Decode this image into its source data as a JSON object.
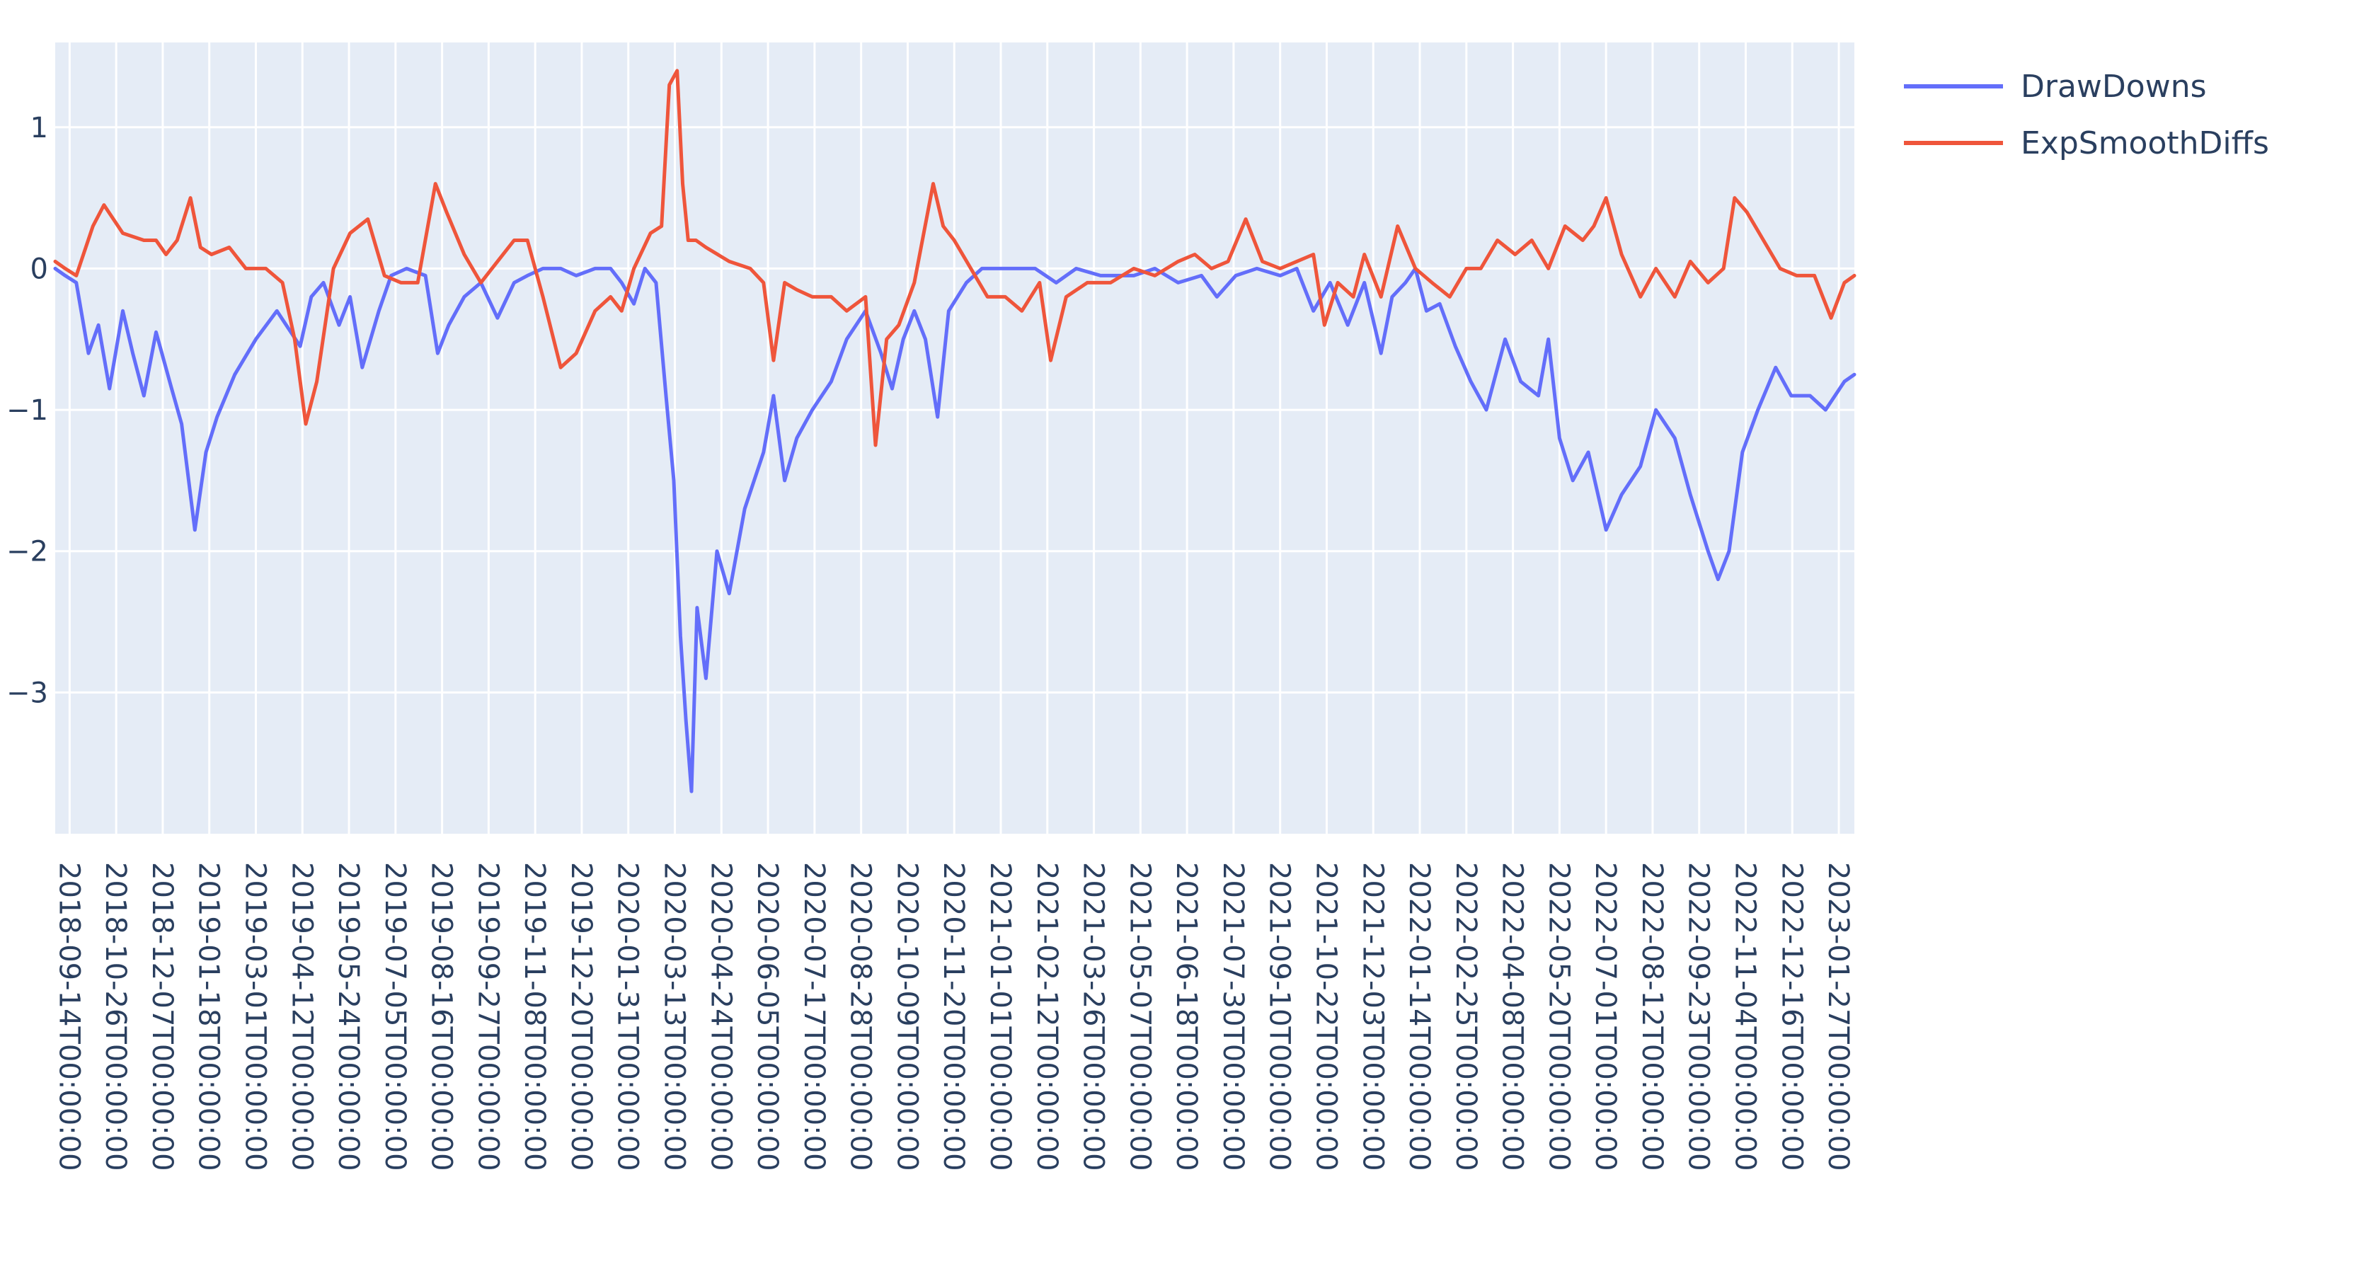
{
  "chart_data": {
    "type": "line",
    "title": "",
    "xlabel": "",
    "ylabel": "",
    "ylim": [
      -4,
      1.6
    ],
    "yticks": [
      1,
      0,
      -1,
      -2,
      -3
    ],
    "ytick_labels": [
      "1",
      "0",
      "−1",
      "−2",
      "−3"
    ],
    "x_range": [
      "2018-09-01",
      "2023-02-10"
    ],
    "xticks": [
      "2018-09-14",
      "2018-10-26",
      "2018-12-07",
      "2019-01-18",
      "2019-03-01",
      "2019-04-12",
      "2019-05-24",
      "2019-07-05",
      "2019-08-16",
      "2019-09-27",
      "2019-11-08",
      "2019-12-20",
      "2020-01-31",
      "2020-03-13",
      "2020-04-24",
      "2020-06-05",
      "2020-07-17",
      "2020-08-28",
      "2020-10-09",
      "2020-11-20",
      "2021-01-01",
      "2021-02-12",
      "2021-03-26",
      "2021-05-07",
      "2021-06-18",
      "2021-07-30",
      "2021-09-10",
      "2021-10-22",
      "2021-12-03",
      "2022-01-14",
      "2022-02-25",
      "2022-04-08",
      "2022-05-20",
      "2022-07-01",
      "2022-08-12",
      "2022-09-23",
      "2022-11-04",
      "2022-12-16",
      "2023-01-27"
    ],
    "xtick_labels": [
      "2018-09-14T00:00:00",
      "2018-10-26T00:00:00",
      "2018-12-07T00:00:00",
      "2019-01-18T00:00:00",
      "2019-03-01T00:00:00",
      "2019-04-12T00:00:00",
      "2019-05-24T00:00:00",
      "2019-07-05T00:00:00",
      "2019-08-16T00:00:00",
      "2019-09-27T00:00:00",
      "2019-11-08T00:00:00",
      "2019-12-20T00:00:00",
      "2020-01-31T00:00:00",
      "2020-03-13T00:00:00",
      "2020-04-24T00:00:00",
      "2020-06-05T00:00:00",
      "2020-07-17T00:00:00",
      "2020-08-28T00:00:00",
      "2020-10-09T00:00:00",
      "2020-11-20T00:00:00",
      "2021-01-01T00:00:00",
      "2021-02-12T00:00:00",
      "2021-03-26T00:00:00",
      "2021-05-07T00:00:00",
      "2021-06-18T00:00:00",
      "2021-07-30T00:00:00",
      "2021-09-10T00:00:00",
      "2021-10-22T00:00:00",
      "2021-12-03T00:00:00",
      "2022-01-14T00:00:00",
      "2022-02-25T00:00:00",
      "2022-04-08T00:00:00",
      "2022-05-20T00:00:00",
      "2022-07-01T00:00:00",
      "2022-08-12T00:00:00",
      "2022-09-23T00:00:00",
      "2022-11-04T00:00:00",
      "2022-12-16T00:00:00",
      "2023-01-27T00:00:00"
    ],
    "grid": true,
    "legend_position": "top-right",
    "plot_bg": "#e5ecf6",
    "series": [
      {
        "name": "DrawDowns",
        "color": "#636efa",
        "x": [
          "2018-09-01",
          "2018-09-10",
          "2018-09-20",
          "2018-10-01",
          "2018-10-10",
          "2018-10-20",
          "2018-11-01",
          "2018-11-10",
          "2018-11-20",
          "2018-12-01",
          "2018-12-15",
          "2018-12-24",
          "2019-01-05",
          "2019-01-15",
          "2019-01-25",
          "2019-02-10",
          "2019-03-01",
          "2019-03-20",
          "2019-04-10",
          "2019-04-20",
          "2019-05-01",
          "2019-05-15",
          "2019-05-25",
          "2019-06-05",
          "2019-06-20",
          "2019-07-01",
          "2019-07-15",
          "2019-08-01",
          "2019-08-12",
          "2019-08-22",
          "2019-09-05",
          "2019-09-20",
          "2019-10-05",
          "2019-10-20",
          "2019-11-01",
          "2019-11-15",
          "2019-12-01",
          "2019-12-15",
          "2020-01-01",
          "2020-01-15",
          "2020-01-25",
          "2020-02-05",
          "2020-02-15",
          "2020-02-25",
          "2020-03-05",
          "2020-03-12",
          "2020-03-18",
          "2020-03-23",
          "2020-03-28",
          "2020-04-02",
          "2020-04-10",
          "2020-04-20",
          "2020-05-01",
          "2020-05-15",
          "2020-06-01",
          "2020-06-10",
          "2020-06-20",
          "2020-07-01",
          "2020-07-15",
          "2020-08-01",
          "2020-08-15",
          "2020-09-01",
          "2020-09-15",
          "2020-09-25",
          "2020-10-05",
          "2020-10-15",
          "2020-10-25",
          "2020-11-05",
          "2020-11-15",
          "2020-12-01",
          "2020-12-15",
          "2021-01-01",
          "2021-02-01",
          "2021-02-20",
          "2021-03-10",
          "2021-04-01",
          "2021-05-01",
          "2021-05-20",
          "2021-06-10",
          "2021-07-01",
          "2021-07-15",
          "2021-08-01",
          "2021-08-20",
          "2021-09-10",
          "2021-09-25",
          "2021-10-10",
          "2021-10-25",
          "2021-11-10",
          "2021-11-25",
          "2021-12-10",
          "2021-12-20",
          "2022-01-01",
          "2022-01-10",
          "2022-01-20",
          "2022-02-01",
          "2022-02-15",
          "2022-03-01",
          "2022-03-15",
          "2022-04-01",
          "2022-04-15",
          "2022-05-01",
          "2022-05-10",
          "2022-05-20",
          "2022-06-01",
          "2022-06-15",
          "2022-07-01",
          "2022-07-15",
          "2022-08-01",
          "2022-08-15",
          "2022-09-01",
          "2022-09-15",
          "2022-10-01",
          "2022-10-10",
          "2022-10-20",
          "2022-11-01",
          "2022-11-15",
          "2022-12-01",
          "2022-12-15",
          "2023-01-01",
          "2023-01-15",
          "2023-02-01",
          "2023-02-10"
        ],
        "values": [
          0.0,
          -0.05,
          -0.1,
          -0.6,
          -0.4,
          -0.85,
          -0.3,
          -0.6,
          -0.9,
          -0.45,
          -0.85,
          -1.1,
          -1.85,
          -1.3,
          -1.05,
          -0.75,
          -0.5,
          -0.3,
          -0.55,
          -0.2,
          -0.1,
          -0.4,
          -0.2,
          -0.7,
          -0.3,
          -0.05,
          0.0,
          -0.05,
          -0.6,
          -0.4,
          -0.2,
          -0.1,
          -0.35,
          -0.1,
          -0.05,
          0.0,
          0.0,
          -0.05,
          0.0,
          0.0,
          -0.1,
          -0.25,
          0.0,
          -0.1,
          -0.9,
          -1.5,
          -2.6,
          -3.2,
          -3.7,
          -2.4,
          -2.9,
          -2.0,
          -2.3,
          -1.7,
          -1.3,
          -0.9,
          -1.5,
          -1.2,
          -1.0,
          -0.8,
          -0.5,
          -0.3,
          -0.6,
          -0.85,
          -0.5,
          -0.3,
          -0.5,
          -1.05,
          -0.3,
          -0.1,
          0.0,
          0.0,
          0.0,
          -0.1,
          0.0,
          -0.05,
          -0.05,
          0.0,
          -0.1,
          -0.05,
          -0.2,
          -0.05,
          0.0,
          -0.05,
          0.0,
          -0.3,
          -0.1,
          -0.4,
          -0.1,
          -0.6,
          -0.2,
          -0.1,
          0.0,
          -0.3,
          -0.25,
          -0.55,
          -0.8,
          -1.0,
          -0.5,
          -0.8,
          -0.9,
          -0.5,
          -1.2,
          -1.5,
          -1.3,
          -1.85,
          -1.6,
          -1.4,
          -1.0,
          -1.2,
          -1.6,
          -2.0,
          -2.2,
          -2.0,
          -1.3,
          -1.0,
          -0.7,
          -0.9,
          -0.9,
          -1.0,
          -0.8,
          -0.75
        ]
      },
      {
        "name": "ExpSmoothDiffs",
        "color": "#ef553b",
        "x": [
          "2018-09-01",
          "2018-09-10",
          "2018-09-20",
          "2018-10-05",
          "2018-10-15",
          "2018-11-01",
          "2018-11-20",
          "2018-12-01",
          "2018-12-10",
          "2018-12-20",
          "2019-01-01",
          "2019-01-10",
          "2019-01-20",
          "2019-02-05",
          "2019-02-20",
          "2019-03-10",
          "2019-03-25",
          "2019-04-05",
          "2019-04-15",
          "2019-04-25",
          "2019-05-10",
          "2019-05-25",
          "2019-06-10",
          "2019-06-25",
          "2019-07-10",
          "2019-07-25",
          "2019-08-10",
          "2019-08-20",
          "2019-09-05",
          "2019-09-20",
          "2019-10-05",
          "2019-10-20",
          "2019-11-01",
          "2019-11-15",
          "2019-12-01",
          "2019-12-15",
          "2020-01-01",
          "2020-01-15",
          "2020-01-25",
          "2020-02-05",
          "2020-02-20",
          "2020-03-01",
          "2020-03-08",
          "2020-03-15",
          "2020-03-20",
          "2020-03-25",
          "2020-04-01",
          "2020-04-10",
          "2020-05-01",
          "2020-05-20",
          "2020-06-01",
          "2020-06-10",
          "2020-06-20",
          "2020-07-01",
          "2020-07-15",
          "2020-08-01",
          "2020-08-15",
          "2020-09-01",
          "2020-09-10",
          "2020-09-20",
          "2020-10-01",
          "2020-10-15",
          "2020-11-01",
          "2020-11-10",
          "2020-11-20",
          "2020-12-05",
          "2020-12-20",
          "2021-01-05",
          "2021-01-20",
          "2021-02-05",
          "2021-02-15",
          "2021-03-01",
          "2021-03-20",
          "2021-04-10",
          "2021-05-01",
          "2021-05-20",
          "2021-06-10",
          "2021-06-25",
          "2021-07-10",
          "2021-07-25",
          "2021-08-10",
          "2021-08-25",
          "2021-09-10",
          "2021-09-25",
          "2021-10-10",
          "2021-10-20",
          "2021-11-01",
          "2021-11-15",
          "2021-11-25",
          "2021-12-10",
          "2021-12-25",
          "2022-01-10",
          "2022-01-25",
          "2022-02-10",
          "2022-02-25",
          "2022-03-10",
          "2022-03-25",
          "2022-04-10",
          "2022-04-25",
          "2022-05-10",
          "2022-05-25",
          "2022-06-10",
          "2022-06-20",
          "2022-07-01",
          "2022-07-15",
          "2022-08-01",
          "2022-08-15",
          "2022-09-01",
          "2022-09-15",
          "2022-10-01",
          "2022-10-15",
          "2022-10-25",
          "2022-11-05",
          "2022-11-20",
          "2022-12-05",
          "2022-12-20",
          "2023-01-05",
          "2023-01-20",
          "2023-02-01",
          "2023-02-10"
        ],
        "values": [
          0.05,
          0.0,
          -0.05,
          0.3,
          0.45,
          0.25,
          0.2,
          0.2,
          0.1,
          0.2,
          0.5,
          0.15,
          0.1,
          0.15,
          0.0,
          0.0,
          -0.1,
          -0.5,
          -1.1,
          -0.8,
          0.0,
          0.25,
          0.35,
          -0.05,
          -0.1,
          -0.1,
          0.6,
          0.4,
          0.1,
          -0.1,
          0.05,
          0.2,
          0.2,
          -0.2,
          -0.7,
          -0.6,
          -0.3,
          -0.2,
          -0.3,
          0.0,
          0.25,
          0.3,
          1.3,
          1.4,
          0.6,
          0.2,
          0.2,
          0.15,
          0.05,
          0.0,
          -0.1,
          -0.65,
          -0.1,
          -0.15,
          -0.2,
          -0.2,
          -0.3,
          -0.2,
          -1.25,
          -0.5,
          -0.4,
          -0.1,
          0.6,
          0.3,
          0.2,
          0.0,
          -0.2,
          -0.2,
          -0.3,
          -0.1,
          -0.65,
          -0.2,
          -0.1,
          -0.1,
          0.0,
          -0.05,
          0.05,
          0.1,
          0.0,
          0.05,
          0.35,
          0.05,
          0.0,
          0.05,
          0.1,
          -0.4,
          -0.1,
          -0.2,
          0.1,
          -0.2,
          0.3,
          0.0,
          -0.1,
          -0.2,
          0.0,
          0.0,
          0.2,
          0.1,
          0.2,
          0.0,
          0.3,
          0.2,
          0.3,
          0.5,
          0.1,
          -0.2,
          0.0,
          -0.2,
          0.05,
          -0.1,
          0.0,
          0.5,
          0.4,
          0.2,
          0.0,
          -0.05,
          -0.05,
          -0.35,
          -0.1,
          -0.05
        ]
      }
    ]
  }
}
